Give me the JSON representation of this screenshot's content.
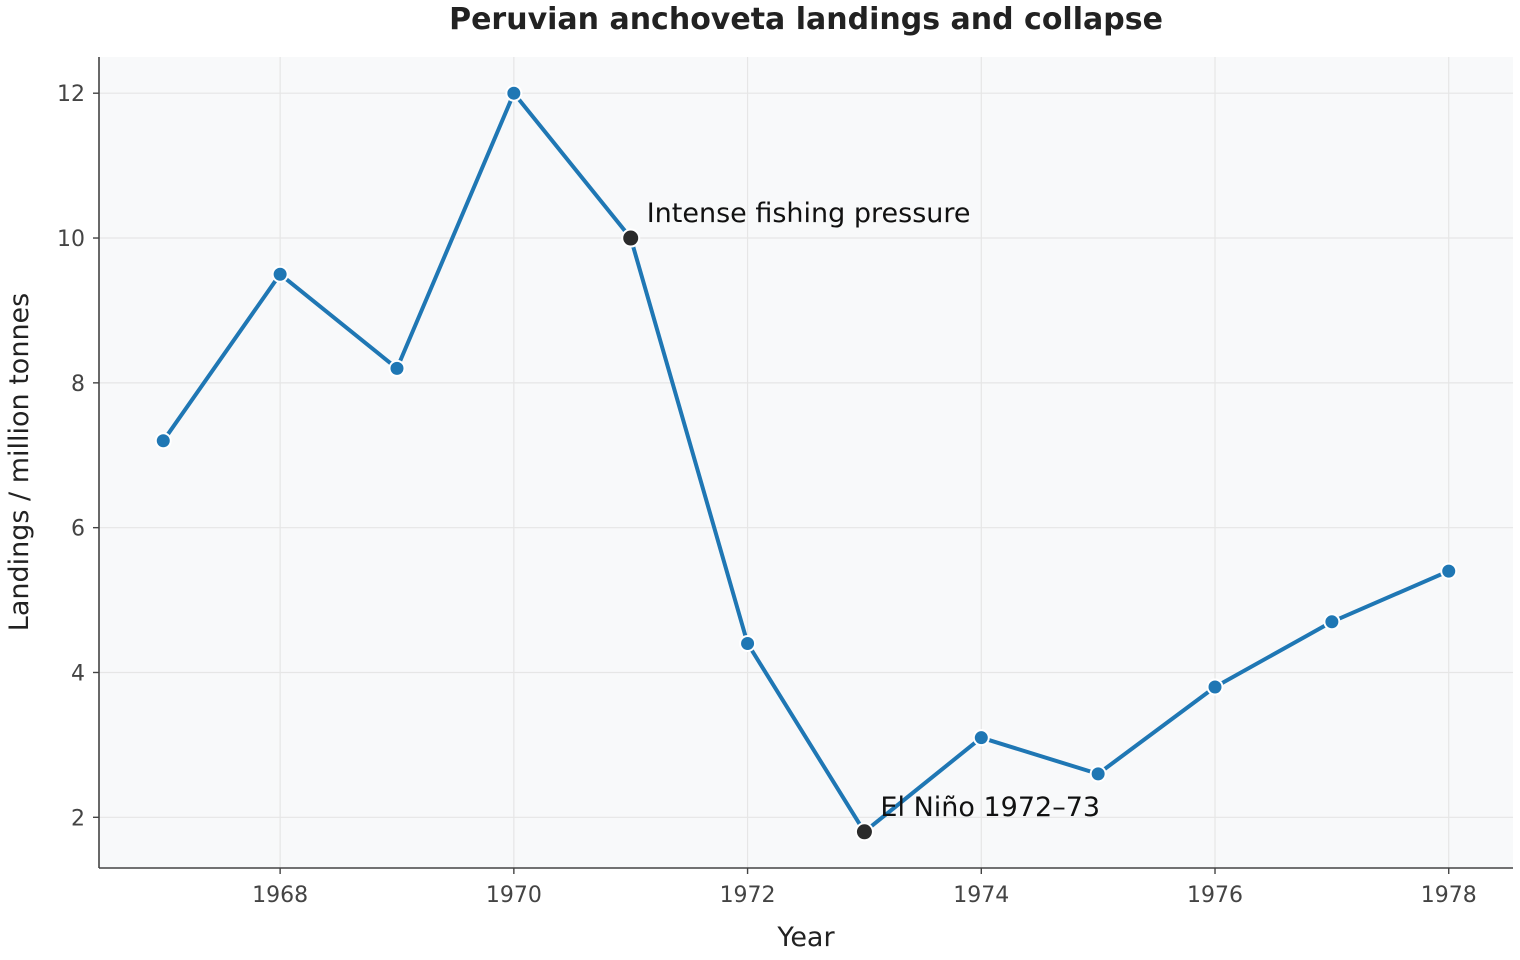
{
  "chart_data": {
    "type": "line",
    "title": "Peruvian anchoveta landings and collapse",
    "xlabel": "Year",
    "ylabel": "Landings / million tonnes",
    "xlim": [
      1966.45,
      1978.55
    ],
    "ylim": [
      1.3,
      12.5
    ],
    "x_ticks": [
      1968,
      1970,
      1972,
      1974,
      1976,
      1978
    ],
    "y_ticks": [
      2,
      4,
      6,
      8,
      10,
      12
    ],
    "grid": true,
    "series": [
      {
        "x": [
          1967,
          1968,
          1969,
          1970,
          1971,
          1972,
          1973,
          1974,
          1975,
          1976,
          1977,
          1978
        ],
        "values": [
          7.2,
          9.5,
          8.2,
          12.0,
          10.0,
          4.4,
          1.8,
          3.1,
          2.6,
          3.8,
          4.7,
          5.4
        ],
        "color": "#1f77b4"
      }
    ],
    "annotations": [
      {
        "x": 1971,
        "y": 10.0,
        "text": "Intense fishing pressure"
      },
      {
        "x": 1973,
        "y": 1.8,
        "text": "El Niño 1972–73"
      }
    ],
    "colors": {
      "series": "#1f77b4",
      "highlight": "#2b2b2b",
      "plot_background": "#f8f9fa",
      "grid": "#e6e6e6",
      "axis": "#444444"
    }
  }
}
